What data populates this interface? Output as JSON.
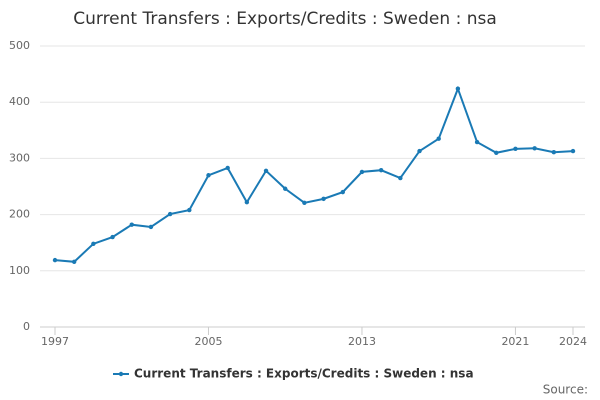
{
  "chart_data": {
    "type": "line",
    "title": "Current Transfers : Exports/Credits : Sweden : nsa",
    "source": "Source:",
    "x": [
      1997,
      1998,
      1999,
      2000,
      2001,
      2002,
      2003,
      2004,
      2005,
      2006,
      2007,
      2008,
      2009,
      2010,
      2011,
      2012,
      2013,
      2014,
      2015,
      2016,
      2017,
      2018,
      2019,
      2020,
      2021,
      2022,
      2023,
      2024
    ],
    "series": [
      {
        "name": "Current Transfers : Exports/Credits : Sweden : nsa",
        "color": "#1a7ab5",
        "values": [
          119,
          116,
          148,
          160,
          182,
          178,
          201,
          208,
          270,
          283,
          222,
          278,
          246,
          221,
          228,
          240,
          276,
          279,
          265,
          313,
          335,
          424,
          329,
          310,
          317,
          318,
          311,
          313
        ]
      }
    ],
    "xlim": [
      1997,
      2024
    ],
    "xticks": [
      1997,
      2005,
      2013,
      2021,
      2024
    ],
    "ylim": [
      0,
      500
    ],
    "yticks": [
      0,
      100,
      200,
      300,
      400,
      500
    ],
    "grid": true
  }
}
